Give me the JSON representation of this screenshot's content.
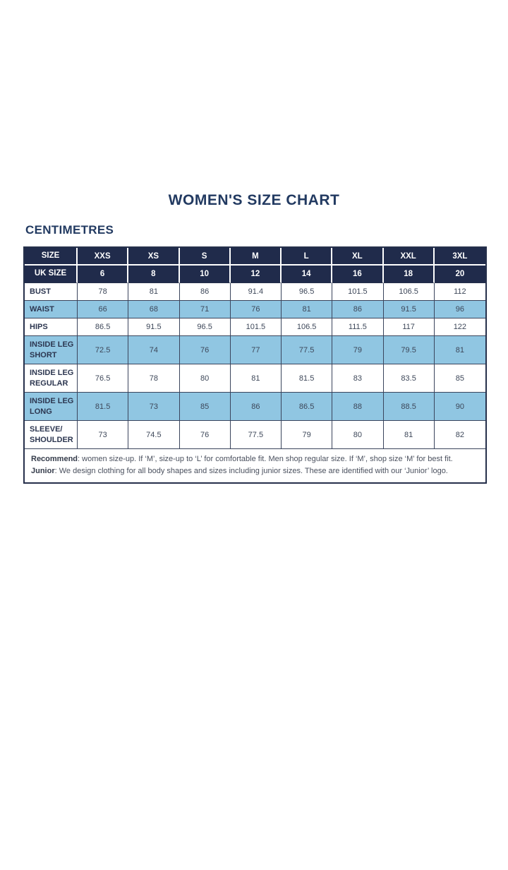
{
  "title": "WOMEN'S SIZE CHART",
  "unit_heading": "CENTIMETRES",
  "colors": {
    "navy_header": "#202b4b",
    "light_blue_row": "#90c6e2",
    "heading_text": "#223a61",
    "border": "#3a445c"
  },
  "table": {
    "header_rows": [
      {
        "label": "SIZE",
        "cells": [
          "XXS",
          "XS",
          "S",
          "M",
          "L",
          "XL",
          "XXL",
          "3XL"
        ]
      },
      {
        "label": "UK SIZE",
        "cells": [
          "6",
          "8",
          "10",
          "12",
          "14",
          "16",
          "18",
          "20"
        ]
      }
    ],
    "rows": [
      {
        "label": "BUST",
        "cells": [
          "78",
          "81",
          "86",
          "91.4",
          "96.5",
          "101.5",
          "106.5",
          "112"
        ]
      },
      {
        "label": "WAIST",
        "cells": [
          "66",
          "68",
          "71",
          "76",
          "81",
          "86",
          "91.5",
          "96"
        ]
      },
      {
        "label": "HIPS",
        "cells": [
          "86.5",
          "91.5",
          "96.5",
          "101.5",
          "106.5",
          "111.5",
          "117",
          "122"
        ]
      },
      {
        "label": "INSIDE LEG\nSHORT",
        "cells": [
          "72.5",
          "74",
          "76",
          "77",
          "77.5",
          "79",
          "79.5",
          "81"
        ]
      },
      {
        "label": "INSIDE LEG\nREGULAR",
        "cells": [
          "76.5",
          "78",
          "80",
          "81",
          "81.5",
          "83",
          "83.5",
          "85"
        ]
      },
      {
        "label": "INSIDE LEG\nLONG",
        "cells": [
          "81.5",
          "73",
          "85",
          "86",
          "86.5",
          "88",
          "88.5",
          "90"
        ]
      },
      {
        "label": "SLEEVE/\nSHOULDER",
        "cells": [
          "73",
          "74.5",
          "76",
          "77.5",
          "79",
          "80",
          "81",
          "82"
        ]
      }
    ],
    "footnote": {
      "line1_label": "Recommend",
      "line1_text": ": women size-up. If ‘M’, size-up to ‘L’ for comfortable fit. Men shop regular size. If ‘M’, shop size ‘M’ for best fit.",
      "line2_label": "Junior",
      "line2_text": ": We design clothing for all body shapes and sizes including junior sizes. These are identified with our ‘Junior’ logo."
    }
  }
}
